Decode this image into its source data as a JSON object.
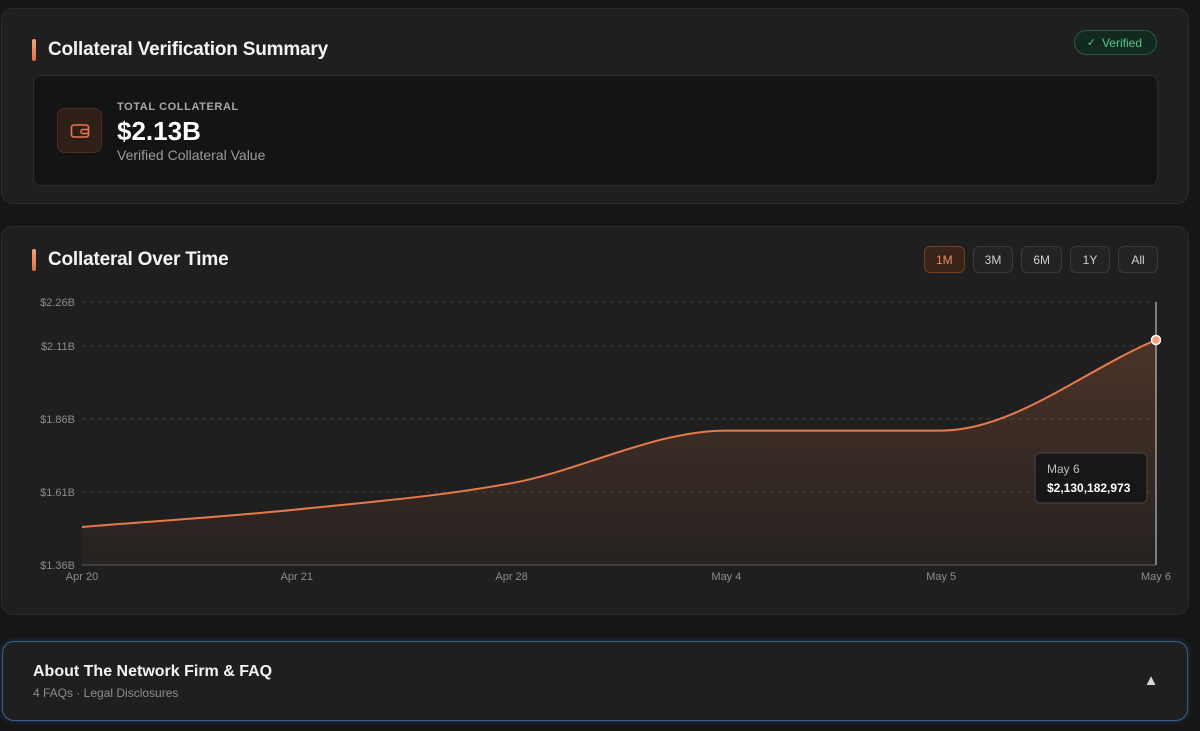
{
  "summary": {
    "title": "Collateral Verification Summary",
    "badge": {
      "check": "✓",
      "label": "Verified"
    },
    "total": {
      "icon": "wallet-icon",
      "label": "TOTAL COLLATERAL",
      "value": "$2.13B",
      "sub": "Verified Collateral Value"
    }
  },
  "chart_section": {
    "title": "Collateral Over Time",
    "ranges": [
      {
        "label": "1M",
        "active": true
      },
      {
        "label": "3M",
        "active": false
      },
      {
        "label": "6M",
        "active": false
      },
      {
        "label": "1Y",
        "active": false
      },
      {
        "label": "All",
        "active": false
      }
    ]
  },
  "chart_data": {
    "type": "area",
    "title": "",
    "xlabel": "",
    "ylabel": "",
    "x": [
      "Apr 20",
      "Apr 21",
      "Apr 28",
      "May 4",
      "May 5",
      "May 6"
    ],
    "series": [
      {
        "values": [
          1.49,
          1.55,
          1.64,
          1.82,
          1.82,
          2.13
        ]
      }
    ],
    "y_ticks": [
      {
        "value": 1.36,
        "label": "$1.36B"
      },
      {
        "value": 1.61,
        "label": "$1.61B"
      },
      {
        "value": 1.86,
        "label": "$1.86B"
      },
      {
        "value": 2.11,
        "label": "$2.11B"
      },
      {
        "value": 2.26,
        "label": "$2.26B"
      }
    ],
    "ylim": [
      1.36,
      2.26
    ],
    "grid": true,
    "legend": "none",
    "line_color": "#e8794a",
    "tooltip": {
      "date": "May 6",
      "value": "$2,130,182,973"
    }
  },
  "faq": {
    "title": "About The Network Firm & FAQ",
    "sub": "4 FAQs · Legal Disclosures",
    "toggle": "▲",
    "toggle_icon": "triangle-up-icon"
  }
}
